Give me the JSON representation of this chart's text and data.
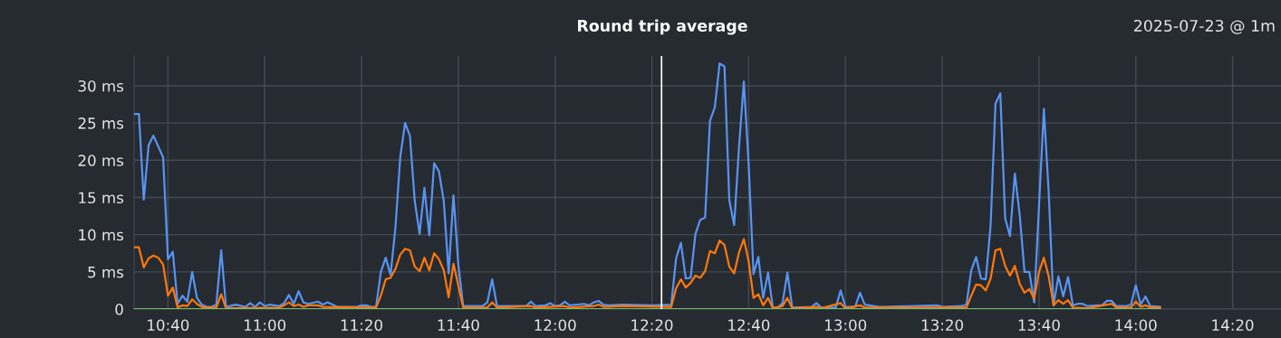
{
  "chart_data": {
    "type": "line",
    "title": "Round trip average",
    "annotations": [
      "2025-07-23 @ 1m"
    ],
    "xlim": [
      "2025-07-23T10:33",
      "2025-07-23T14:30"
    ],
    "xticks": [
      {
        "value": "2025-07-23T10:40",
        "label": "10:40"
      },
      {
        "value": "2025-07-23T11:00",
        "label": "11:00"
      },
      {
        "value": "2025-07-23T11:20",
        "label": "11:20"
      },
      {
        "value": "2025-07-23T11:40",
        "label": "11:40"
      },
      {
        "value": "2025-07-23T12:00",
        "label": "12:00"
      },
      {
        "value": "2025-07-23T12:20",
        "label": "12:20"
      },
      {
        "value": "2025-07-23T12:40",
        "label": "12:40"
      },
      {
        "value": "2025-07-23T13:00",
        "label": "13:00"
      },
      {
        "value": "2025-07-23T13:20",
        "label": "13:20"
      },
      {
        "value": "2025-07-23T13:40",
        "label": "13:40"
      },
      {
        "value": "2025-07-23T14:00",
        "label": "14:00"
      },
      {
        "value": "2025-07-23T14:20",
        "label": "14:20"
      }
    ],
    "ylim": [
      0,
      34
    ],
    "yticks": [
      0,
      {
        "value": 5,
        "label": "5 ms"
      },
      {
        "value": 10,
        "label": "10 ms"
      },
      {
        "value": 15,
        "label": "15 ms"
      },
      {
        "value": 20,
        "label": "20 ms"
      },
      {
        "value": 25,
        "label": "25 ms"
      },
      {
        "value": 30,
        "label": "30 ms"
      }
    ],
    "grid": true,
    "legend": false,
    "marker": "none",
    "line_style": "solid",
    "ref_lines": [
      {
        "axis": "x",
        "value": "2025-07-23T12:22",
        "color": "#ffffff"
      }
    ],
    "series": [
      {
        "color": "#5794f2",
        "x": [
          "2025-07-23T10:33",
          "2025-07-23T10:34",
          "2025-07-23T10:35",
          "2025-07-23T10:36",
          "2025-07-23T10:37",
          "2025-07-23T10:39",
          "2025-07-23T10:40",
          "2025-07-23T10:41",
          "2025-07-23T10:42",
          "2025-07-23T10:43",
          "2025-07-23T10:44",
          "2025-07-23T10:45",
          "2025-07-23T10:46",
          "2025-07-23T10:47",
          "2025-07-23T10:48",
          "2025-07-23T10:49",
          "2025-07-23T10:50",
          "2025-07-23T10:51",
          "2025-07-23T10:52",
          "2025-07-23T10:54",
          "2025-07-23T10:56",
          "2025-07-23T10:57",
          "2025-07-23T10:58",
          "2025-07-23T10:59",
          "2025-07-23T11:00",
          "2025-07-23T11:01",
          "2025-07-23T11:03",
          "2025-07-23T11:04",
          "2025-07-23T11:05",
          "2025-07-23T11:06",
          "2025-07-23T11:07",
          "2025-07-23T11:08",
          "2025-07-23T11:09",
          "2025-07-23T11:11",
          "2025-07-23T11:12",
          "2025-07-23T11:13",
          "2025-07-23T11:14",
          "2025-07-23T11:15",
          "2025-07-23T11:19",
          "2025-07-23T11:20",
          "2025-07-23T11:21",
          "2025-07-23T11:22",
          "2025-07-23T11:23",
          "2025-07-23T11:24",
          "2025-07-23T11:25",
          "2025-07-23T11:26",
          "2025-07-23T11:27",
          "2025-07-23T11:28",
          "2025-07-23T11:29",
          "2025-07-23T11:30",
          "2025-07-23T11:31",
          "2025-07-23T11:32",
          "2025-07-23T11:33",
          "2025-07-23T11:34",
          "2025-07-23T11:35",
          "2025-07-23T11:36",
          "2025-07-23T11:37",
          "2025-07-23T11:38",
          "2025-07-23T11:39",
          "2025-07-23T11:40",
          "2025-07-23T11:41",
          "2025-07-23T11:45",
          "2025-07-23T11:46",
          "2025-07-23T11:47",
          "2025-07-23T11:48",
          "2025-07-23T11:54",
          "2025-07-23T11:55",
          "2025-07-23T11:56",
          "2025-07-23T11:58",
          "2025-07-23T11:59",
          "2025-07-23T12:00",
          "2025-07-23T12:01",
          "2025-07-23T12:02",
          "2025-07-23T12:03",
          "2025-07-23T12:06",
          "2025-07-23T12:07",
          "2025-07-23T12:08",
          "2025-07-23T12:09",
          "2025-07-23T12:10",
          "2025-07-23T12:11",
          "2025-07-23T12:14",
          "2025-07-23T12:20",
          "2025-07-23T12:24",
          "2025-07-23T12:25",
          "2025-07-23T12:26",
          "2025-07-23T12:27",
          "2025-07-23T12:28",
          "2025-07-23T12:29",
          "2025-07-23T12:30",
          "2025-07-23T12:31",
          "2025-07-23T12:32",
          "2025-07-23T12:33",
          "2025-07-23T12:34",
          "2025-07-23T12:35",
          "2025-07-23T12:36",
          "2025-07-23T12:37",
          "2025-07-23T12:38",
          "2025-07-23T12:39",
          "2025-07-23T12:40",
          "2025-07-23T12:41",
          "2025-07-23T12:42",
          "2025-07-23T12:43",
          "2025-07-23T12:44",
          "2025-07-23T12:45",
          "2025-07-23T12:46",
          "2025-07-23T12:47",
          "2025-07-23T12:48",
          "2025-07-23T12:49",
          "2025-07-23T12:53",
          "2025-07-23T12:54",
          "2025-07-23T12:55",
          "2025-07-23T12:58",
          "2025-07-23T12:59",
          "2025-07-23T13:00",
          "2025-07-23T13:02",
          "2025-07-23T13:03",
          "2025-07-23T13:04",
          "2025-07-23T13:05",
          "2025-07-23T13:07",
          "2025-07-23T13:19",
          "2025-07-23T13:20",
          "2025-07-23T13:24",
          "2025-07-23T13:25",
          "2025-07-23T13:26",
          "2025-07-23T13:27",
          "2025-07-23T13:28",
          "2025-07-23T13:29",
          "2025-07-23T13:30",
          "2025-07-23T13:31",
          "2025-07-23T13:32",
          "2025-07-23T13:33",
          "2025-07-23T13:34",
          "2025-07-23T13:35",
          "2025-07-23T13:36",
          "2025-07-23T13:37",
          "2025-07-23T13:38",
          "2025-07-23T13:39",
          "2025-07-23T13:40",
          "2025-07-23T13:41",
          "2025-07-23T13:42",
          "2025-07-23T13:43",
          "2025-07-23T13:44",
          "2025-07-23T13:45",
          "2025-07-23T13:46",
          "2025-07-23T13:47",
          "2025-07-23T13:48",
          "2025-07-23T13:49",
          "2025-07-23T13:50",
          "2025-07-23T13:52",
          "2025-07-23T13:53",
          "2025-07-23T13:54",
          "2025-07-23T13:55",
          "2025-07-23T13:56",
          "2025-07-23T13:58",
          "2025-07-23T13:59",
          "2025-07-23T14:00",
          "2025-07-23T14:01",
          "2025-07-23T14:02",
          "2025-07-23T14:03",
          "2025-07-23T14:05"
        ],
        "values": [
          26.2,
          26.2,
          14.7,
          22.0,
          23.3,
          20.4,
          6.7,
          7.7,
          0.7,
          1.8,
          1.0,
          5.0,
          1.5,
          0.6,
          0.3,
          0.3,
          0.6,
          7.9,
          0.3,
          0.6,
          0.3,
          0.8,
          0.3,
          0.9,
          0.4,
          0.6,
          0.4,
          0.8,
          1.9,
          0.7,
          2.4,
          0.9,
          0.7,
          1.0,
          0.6,
          0.9,
          0.6,
          0.3,
          0.3,
          0.5,
          0.5,
          0.3,
          0.3,
          5.0,
          6.9,
          4.6,
          10.9,
          20.4,
          25.0,
          23.3,
          14.5,
          10.1,
          16.3,
          9.9,
          19.6,
          18.5,
          14.5,
          4.8,
          15.3,
          6.0,
          0.4,
          0.4,
          0.9,
          4.0,
          0.4,
          0.4,
          1.0,
          0.4,
          0.5,
          0.8,
          0.4,
          0.5,
          1.0,
          0.5,
          0.7,
          0.5,
          0.9,
          1.1,
          0.6,
          0.5,
          0.6,
          0.5,
          0.6,
          6.8,
          8.9,
          4.1,
          4.2,
          10.1,
          12.0,
          12.3,
          25.3,
          27.1,
          33.0,
          32.6,
          14.6,
          11.3,
          21.7,
          30.6,
          19.5,
          4.7,
          7.0,
          1.5,
          4.9,
          0.2,
          0.2,
          0.8,
          4.9,
          0.2,
          0.3,
          0.8,
          0.2,
          0.2,
          2.5,
          0.3,
          0.3,
          2.2,
          0.6,
          0.5,
          0.3,
          0.5,
          0.3,
          0.4,
          0.6,
          5.2,
          7.0,
          4.1,
          4.0,
          11.3,
          27.6,
          29.0,
          12.2,
          9.8,
          18.2,
          12.7,
          5.0,
          5.0,
          0.9,
          13.9,
          26.9,
          15.7,
          0.5,
          4.4,
          1.7,
          4.3,
          0.5,
          0.7,
          0.7,
          0.4,
          0.5,
          0.5,
          1.1,
          1.1,
          0.4,
          0.4,
          0.6,
          3.2,
          0.6,
          1.7,
          0.4,
          0.3
        ]
      },
      {
        "color": "#ff780a",
        "x": [
          "2025-07-23T10:33",
          "2025-07-23T10:34",
          "2025-07-23T10:35",
          "2025-07-23T10:36",
          "2025-07-23T10:37",
          "2025-07-23T10:38",
          "2025-07-23T10:39",
          "2025-07-23T10:40",
          "2025-07-23T10:41",
          "2025-07-23T10:42",
          "2025-07-23T10:43",
          "2025-07-23T10:44",
          "2025-07-23T10:45",
          "2025-07-23T10:46",
          "2025-07-23T10:47",
          "2025-07-23T10:48",
          "2025-07-23T10:50",
          "2025-07-23T10:51",
          "2025-07-23T10:52",
          "2025-07-23T11:03",
          "2025-07-23T11:04",
          "2025-07-23T11:05",
          "2025-07-23T11:06",
          "2025-07-23T11:07",
          "2025-07-23T11:08",
          "2025-07-23T11:09",
          "2025-07-23T11:11",
          "2025-07-23T11:12",
          "2025-07-23T11:23",
          "2025-07-23T11:24",
          "2025-07-23T11:25",
          "2025-07-23T11:26",
          "2025-07-23T11:27",
          "2025-07-23T11:28",
          "2025-07-23T11:29",
          "2025-07-23T11:30",
          "2025-07-23T11:31",
          "2025-07-23T11:32",
          "2025-07-23T11:33",
          "2025-07-23T11:34",
          "2025-07-23T11:35",
          "2025-07-23T11:36",
          "2025-07-23T11:37",
          "2025-07-23T11:38",
          "2025-07-23T11:39",
          "2025-07-23T11:40",
          "2025-07-23T11:41",
          "2025-07-23T11:46",
          "2025-07-23T11:47",
          "2025-07-23T11:48",
          "2025-07-23T11:55",
          "2025-07-23T11:56",
          "2025-07-23T12:02",
          "2025-07-23T12:03",
          "2025-07-23T12:08",
          "2025-07-23T12:09",
          "2025-07-23T12:10",
          "2025-07-23T12:14",
          "2025-07-23T12:24",
          "2025-07-23T12:25",
          "2025-07-23T12:26",
          "2025-07-23T12:27",
          "2025-07-23T12:28",
          "2025-07-23T12:29",
          "2025-07-23T12:30",
          "2025-07-23T12:31",
          "2025-07-23T12:32",
          "2025-07-23T12:33",
          "2025-07-23T12:34",
          "2025-07-23T12:35",
          "2025-07-23T12:36",
          "2025-07-23T12:37",
          "2025-07-23T12:38",
          "2025-07-23T12:39",
          "2025-07-23T12:40",
          "2025-07-23T12:41",
          "2025-07-23T12:42",
          "2025-07-23T12:43",
          "2025-07-23T12:44",
          "2025-07-23T12:45",
          "2025-07-23T12:47",
          "2025-07-23T12:48",
          "2025-07-23T12:49",
          "2025-07-23T12:54",
          "2025-07-23T12:55",
          "2025-07-23T12:59",
          "2025-07-23T13:00",
          "2025-07-23T13:03",
          "2025-07-23T13:04",
          "2025-07-23T13:24",
          "2025-07-23T13:25",
          "2025-07-23T13:26",
          "2025-07-23T13:27",
          "2025-07-23T13:28",
          "2025-07-23T13:29",
          "2025-07-23T13:30",
          "2025-07-23T13:31",
          "2025-07-23T13:32",
          "2025-07-23T13:33",
          "2025-07-23T13:34",
          "2025-07-23T13:35",
          "2025-07-23T13:36",
          "2025-07-23T13:37",
          "2025-07-23T13:38",
          "2025-07-23T13:39",
          "2025-07-23T13:40",
          "2025-07-23T13:41",
          "2025-07-23T13:42",
          "2025-07-23T13:43",
          "2025-07-23T13:44",
          "2025-07-23T13:45",
          "2025-07-23T13:46",
          "2025-07-23T13:47",
          "2025-07-23T13:50",
          "2025-07-23T13:54",
          "2025-07-23T13:55",
          "2025-07-23T13:56",
          "2025-07-23T13:59",
          "2025-07-23T14:00",
          "2025-07-23T14:01",
          "2025-07-23T14:02",
          "2025-07-23T14:03",
          "2025-07-23T14:05"
        ],
        "values": [
          8.3,
          8.3,
          5.6,
          6.8,
          7.2,
          6.9,
          6.0,
          1.8,
          2.9,
          0.2,
          0.5,
          0.4,
          1.3,
          0.7,
          0.3,
          0.2,
          0.2,
          2.0,
          0.1,
          0.2,
          0.5,
          0.9,
          0.4,
          0.6,
          0.3,
          0.5,
          0.5,
          0.3,
          0.2,
          1.8,
          4.0,
          4.2,
          5.4,
          7.3,
          8.1,
          7.9,
          5.7,
          5.1,
          6.9,
          5.2,
          7.5,
          6.7,
          5.2,
          1.6,
          6.1,
          3.2,
          0.2,
          0.2,
          0.9,
          0.2,
          0.4,
          0.2,
          0.4,
          0.2,
          0.4,
          0.6,
          0.3,
          0.4,
          0.3,
          2.8,
          4.0,
          2.9,
          3.5,
          4.5,
          4.2,
          5.1,
          7.8,
          7.5,
          9.2,
          8.6,
          5.7,
          4.8,
          7.6,
          9.4,
          6.4,
          1.5,
          2.0,
          0.5,
          1.5,
          0.1,
          0.4,
          1.5,
          0.1,
          0.3,
          0.1,
          0.8,
          0.1,
          0.5,
          0.2,
          0.2,
          0.2,
          1.8,
          3.3,
          3.2,
          2.5,
          4.1,
          7.9,
          8.1,
          5.8,
          4.5,
          5.8,
          3.4,
          2.2,
          2.7,
          1.4,
          5.0,
          6.9,
          4.4,
          0.5,
          1.2,
          0.7,
          1.2,
          0.2,
          0.1,
          0.6,
          0.7,
          0.2,
          0.2,
          1.0,
          0.3,
          0.5,
          0.2,
          0.2
        ]
      },
      {
        "color": "#73bf69",
        "x": [
          "2025-07-23T10:33",
          "2025-07-23T14:05"
        ],
        "values": [
          0,
          0
        ]
      }
    ]
  }
}
